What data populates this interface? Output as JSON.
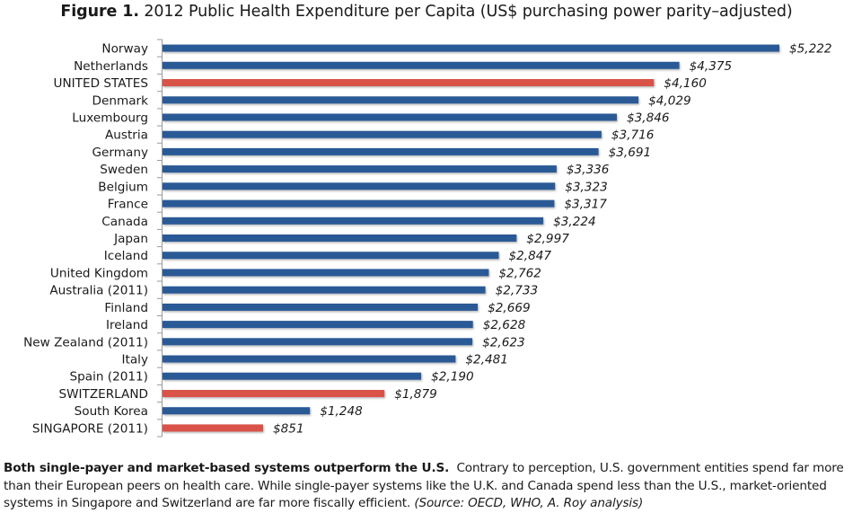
{
  "title": {
    "figure_label": "Figure 1.",
    "main": "2012 Public Health Expenditure per Capita",
    "units": "(US$ purchasing power parity–adjusted)"
  },
  "colors": {
    "default_bar": "#2a5a96",
    "highlight_bar": "#d9534a",
    "axis": "#9a9a9a"
  },
  "chart_data": {
    "type": "bar",
    "orientation": "horizontal",
    "title": "Figure 1. 2012 Public Health Expenditure per Capita (US$ purchasing power parity–adjusted)",
    "xlabel": "",
    "ylabel": "",
    "xlim": [
      0,
      5222
    ],
    "grid": false,
    "legend": "none",
    "value_prefix": "$",
    "categories": [
      "Norway",
      "Netherlands",
      "UNITED STATES",
      "Denmark",
      "Luxembourg",
      "Austria",
      "Germany",
      "Sweden",
      "Belgium",
      "France",
      "Canada",
      "Japan",
      "Iceland",
      "United Kingdom",
      "Australia (2011)",
      "Finland",
      "Ireland",
      "New Zealand (2011)",
      "Italy",
      "Spain (2011)",
      "SWITZERLAND",
      "South Korea",
      "SINGAPORE (2011)"
    ],
    "values": [
      5222,
      4375,
      4160,
      4029,
      3846,
      3716,
      3691,
      3336,
      3323,
      3317,
      3224,
      2997,
      2847,
      2762,
      2733,
      2669,
      2628,
      2623,
      2481,
      2190,
      1879,
      1248,
      851
    ],
    "value_labels": [
      "$5,222",
      "$4,375",
      "$4,160",
      "$4,029",
      "$3,846",
      "$3,716",
      "$3,691",
      "$3,336",
      "$3,323",
      "$3,317",
      "$3,224",
      "$2,997",
      "$2,847",
      "$2,762",
      "$2,733",
      "$2,669",
      "$2,628",
      "$2,623",
      "$2,481",
      "$2,190",
      "$1,879",
      "$1,248",
      "$851"
    ],
    "highlighted": [
      "UNITED STATES",
      "SWITZERLAND",
      "SINGAPORE (2011)"
    ]
  },
  "caption": {
    "lead": "Both single-payer and market-based systems outperform the U.S.",
    "body": "Contrary to perception, U.S. government entities spend far more than their European peers on health care. While single-payer systems like the U.K. and Canada spend less than the U.S., market-oriented systems in Singapore and Switzerland are far more fiscally efficient.",
    "source": "(Source: OECD, WHO, A. Roy analysis)"
  }
}
